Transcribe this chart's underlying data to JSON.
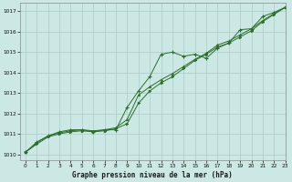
{
  "title": "Graphe pression niveau de la mer (hPa)",
  "bg_color": "#cce8e4",
  "grid_color": "#aaccca",
  "line_color": "#2d6e2d",
  "xlim": [
    -0.5,
    23
  ],
  "ylim": [
    1009.7,
    1017.4
  ],
  "yticks": [
    1010,
    1011,
    1012,
    1013,
    1014,
    1015,
    1016,
    1017
  ],
  "xticks": [
    0,
    1,
    2,
    3,
    4,
    5,
    6,
    7,
    8,
    9,
    10,
    11,
    12,
    13,
    14,
    15,
    16,
    17,
    18,
    19,
    20,
    21,
    22,
    23
  ],
  "series1_x": [
    0,
    1,
    2,
    3,
    4,
    5,
    6,
    7,
    8,
    9,
    10,
    11,
    12,
    13,
    14,
    15,
    16,
    17,
    18,
    19,
    20,
    21,
    22,
    23
  ],
  "series1_y": [
    1010.1,
    1010.6,
    1010.9,
    1011.1,
    1011.2,
    1011.2,
    1011.1,
    1011.2,
    1011.2,
    1012.3,
    1013.1,
    1013.8,
    1014.9,
    1015.0,
    1014.8,
    1014.9,
    1014.7,
    1015.2,
    1015.45,
    1016.1,
    1016.15,
    1016.75,
    1016.95,
    1017.2
  ],
  "series2_x": [
    0,
    1,
    2,
    3,
    4,
    5,
    6,
    7,
    8,
    9,
    10,
    11,
    12,
    13,
    14,
    15,
    16,
    17,
    18,
    19,
    20,
    21,
    22,
    23
  ],
  "series2_y": [
    1010.1,
    1010.5,
    1010.85,
    1011.0,
    1011.1,
    1011.15,
    1011.1,
    1011.15,
    1011.25,
    1011.5,
    1012.5,
    1013.1,
    1013.5,
    1013.8,
    1014.2,
    1014.6,
    1014.9,
    1015.25,
    1015.45,
    1015.75,
    1016.05,
    1016.5,
    1016.85,
    1017.2
  ],
  "series3_x": [
    0,
    1,
    2,
    3,
    4,
    5,
    6,
    7,
    8,
    9,
    10,
    11,
    12,
    13,
    14,
    15,
    16,
    17,
    18,
    19,
    20,
    21,
    22,
    23
  ],
  "series3_y": [
    1010.1,
    1010.55,
    1010.9,
    1011.05,
    1011.15,
    1011.2,
    1011.15,
    1011.2,
    1011.3,
    1011.7,
    1012.9,
    1013.3,
    1013.65,
    1013.95,
    1014.3,
    1014.65,
    1014.95,
    1015.35,
    1015.55,
    1015.85,
    1016.15,
    1016.55,
    1016.9,
    1017.2
  ]
}
